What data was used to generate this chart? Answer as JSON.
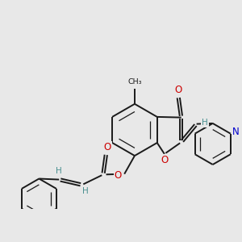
{
  "bg_color": "#e8e8e8",
  "bond_color": "#1a1a1a",
  "bond_width": 1.4,
  "atom_colors": {
    "O": "#cc0000",
    "N": "#0000cc",
    "H": "#4a9090",
    "C": "#1a1a1a"
  }
}
